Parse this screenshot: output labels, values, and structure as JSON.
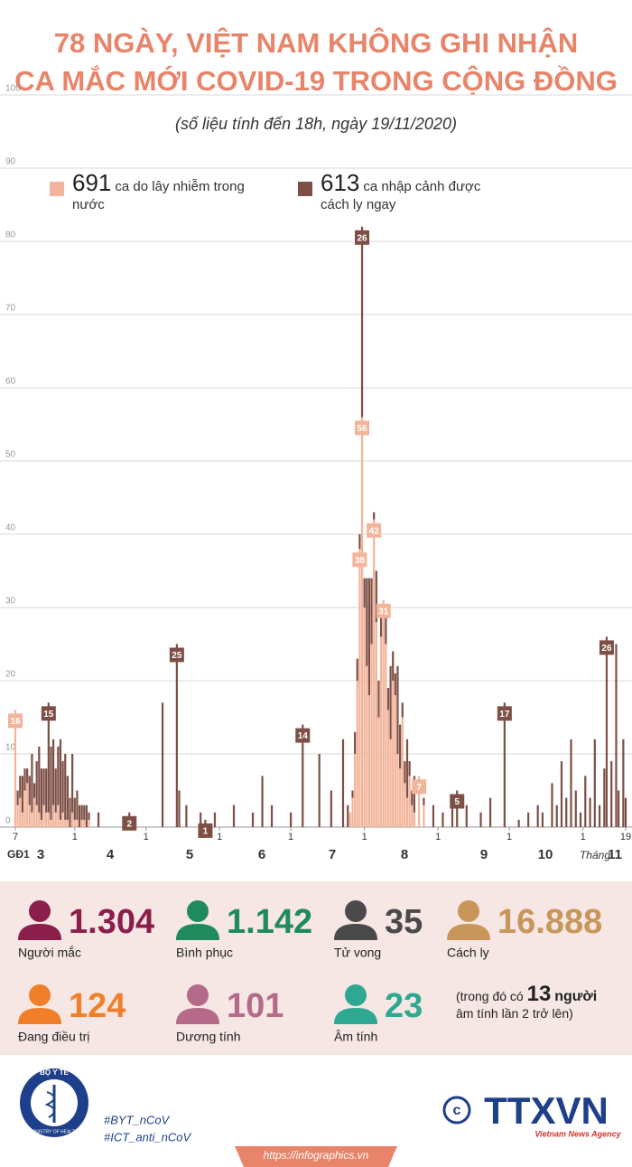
{
  "chart_data": {
    "type": "bar",
    "title_lines": [
      "78 NGÀY, VIỆT NAM KHÔNG GHI NHẬN",
      "CA MẮC MỚI COVID-19 TRONG CỘNG ĐỒNG"
    ],
    "subtitle": "(số liệu tính đến 18h, ngày 19/11/2020)",
    "stacked": true,
    "grid": true,
    "ylim": [
      0,
      100
    ],
    "yticks": [
      0,
      10,
      20,
      30,
      40,
      50,
      60,
      70,
      80,
      90,
      100
    ],
    "xlim": [
      -2,
      260
    ],
    "xticks": [
      {
        "value": 0,
        "label": "7"
      },
      {
        "value": 25,
        "label": "1"
      },
      {
        "value": 55,
        "label": "1"
      },
      {
        "value": 86,
        "label": "1"
      },
      {
        "value": 116,
        "label": "1"
      },
      {
        "value": 147,
        "label": "1"
      },
      {
        "value": 178,
        "label": "1"
      },
      {
        "value": 208,
        "label": "1"
      },
      {
        "value": 239,
        "label": "1"
      },
      {
        "value": 257,
        "label": "19"
      }
    ],
    "phase_label": "GĐ1",
    "months": [
      "3",
      "4",
      "5",
      "6",
      "7",
      "8",
      "9",
      "10",
      "11"
    ],
    "month_word": "Tháng",
    "x": [
      0,
      1,
      2,
      3,
      4,
      5,
      6,
      7,
      8,
      9,
      10,
      11,
      12,
      13,
      14,
      15,
      16,
      17,
      18,
      19,
      20,
      21,
      22,
      23,
      24,
      25,
      26,
      27,
      28,
      29,
      30,
      31,
      35,
      48,
      62,
      68,
      69,
      72,
      78,
      80,
      84,
      92,
      100,
      104,
      108,
      116,
      121,
      128,
      133,
      138,
      140,
      141,
      142,
      143,
      144,
      145,
      146,
      147,
      148,
      149,
      150,
      151,
      152,
      153,
      154,
      155,
      156,
      157,
      158,
      159,
      160,
      161,
      162,
      163,
      164,
      165,
      166,
      167,
      168,
      170,
      172,
      176,
      180,
      184,
      186,
      190,
      196,
      200,
      206,
      212,
      216,
      220,
      222,
      226,
      228,
      230,
      232,
      234,
      236,
      238,
      240,
      242,
      244,
      246,
      248,
      249,
      251,
      253,
      254,
      256,
      257
    ],
    "series": [
      {
        "name": "ca do lây nhiễm trong nước",
        "total": 691,
        "color": "#f2b49a",
        "values": [
          16,
          3,
          4,
          2,
          5,
          6,
          3,
          2,
          4,
          3,
          2,
          1,
          3,
          2,
          2,
          1,
          3,
          2,
          3,
          1,
          2,
          1,
          1,
          0,
          2,
          1,
          1,
          0,
          1,
          1,
          0,
          1,
          0,
          0,
          0,
          0,
          0,
          0,
          0,
          0,
          0,
          0,
          0,
          0,
          0,
          0,
          0,
          0,
          0,
          0,
          0,
          2,
          4,
          10,
          20,
          38,
          56,
          30,
          22,
          18,
          25,
          42,
          28,
          15,
          26,
          31,
          25,
          16,
          12,
          20,
          18,
          10,
          8,
          15,
          6,
          4,
          7,
          3,
          2,
          7,
          3,
          0,
          0,
          0,
          0,
          0,
          0,
          0,
          0,
          0,
          0,
          0,
          0,
          0,
          0,
          0,
          0,
          0,
          0,
          0,
          0,
          0,
          0,
          0,
          0,
          0,
          0,
          0,
          0,
          0,
          0
        ],
        "value_labels": [
          "16",
          null,
          null,
          null,
          null,
          null,
          null,
          null,
          null,
          null,
          null,
          null,
          null,
          null,
          null,
          null,
          null,
          null,
          null,
          null,
          null,
          null,
          null,
          null,
          null,
          null,
          null,
          null,
          null,
          null,
          null,
          null,
          null,
          null,
          null,
          null,
          null,
          null,
          null,
          null,
          null,
          null,
          null,
          null,
          null,
          null,
          null,
          null,
          null,
          null,
          null,
          null,
          null,
          null,
          null,
          "38",
          "56",
          null,
          null,
          null,
          null,
          "42",
          null,
          null,
          null,
          "31",
          null,
          null,
          null,
          null,
          null,
          null,
          null,
          null,
          null,
          null,
          null,
          null,
          null,
          "7",
          null,
          null,
          null,
          null,
          null,
          null,
          null,
          null,
          null,
          null,
          null,
          null,
          null,
          null,
          null,
          null,
          null,
          null,
          null,
          null,
          null,
          null,
          null,
          null,
          null,
          null,
          null,
          null,
          null,
          null,
          null
        ]
      },
      {
        "name": "ca nhập cảnh được cách ly ngay",
        "total": 613,
        "color": "#7d4f45",
        "values": [
          0,
          2,
          3,
          5,
          3,
          2,
          4,
          8,
          2,
          6,
          9,
          7,
          5,
          6,
          15,
          10,
          9,
          6,
          8,
          11,
          7,
          9,
          6,
          4,
          8,
          3,
          4,
          3,
          2,
          2,
          3,
          1,
          2,
          2,
          17,
          25,
          5,
          3,
          2,
          1,
          2,
          3,
          2,
          7,
          3,
          2,
          14,
          10,
          5,
          12,
          3,
          0,
          1,
          3,
          3,
          2,
          26,
          4,
          12,
          16,
          9,
          1,
          7,
          5,
          3,
          0,
          5,
          3,
          10,
          4,
          3,
          12,
          6,
          2,
          3,
          8,
          2,
          2,
          5,
          0,
          1,
          3,
          2,
          4,
          5,
          3,
          2,
          4,
          17,
          1,
          2,
          3,
          2,
          6,
          3,
          9,
          4,
          12,
          5,
          2,
          7,
          4,
          12,
          3,
          8,
          26,
          9,
          25,
          5,
          12,
          4
        ],
        "value_labels": [
          null,
          null,
          null,
          null,
          null,
          null,
          null,
          null,
          null,
          null,
          null,
          null,
          null,
          null,
          "15",
          null,
          null,
          null,
          null,
          null,
          null,
          null,
          null,
          null,
          null,
          null,
          null,
          null,
          null,
          null,
          null,
          null,
          null,
          "2",
          null,
          "25",
          null,
          null,
          null,
          "1",
          null,
          null,
          null,
          null,
          null,
          null,
          "14",
          null,
          null,
          null,
          null,
          null,
          null,
          null,
          null,
          null,
          "26",
          null,
          null,
          null,
          null,
          null,
          null,
          null,
          null,
          null,
          null,
          null,
          null,
          null,
          null,
          null,
          null,
          null,
          null,
          null,
          null,
          null,
          null,
          null,
          null,
          null,
          null,
          null,
          "5",
          null,
          null,
          null,
          "17",
          null,
          null,
          null,
          null,
          null,
          null,
          null,
          null,
          null,
          null,
          null,
          null,
          null,
          null,
          null,
          null,
          "26",
          null,
          null,
          null,
          null,
          null
        ]
      }
    ]
  },
  "stats": [
    {
      "value": "1.304",
      "label": "Người mắc",
      "color": "#8b1e4a"
    },
    {
      "value": "1.142",
      "label": "Bình phục",
      "color": "#1f8a5c"
    },
    {
      "value": "35",
      "label": "Tử vong",
      "color": "#4a4a4a"
    },
    {
      "value": "16.888",
      "label": "Cách ly",
      "color": "#c8965a"
    },
    {
      "value": "124",
      "label": "Đang điều trị",
      "color": "#f07f2a"
    },
    {
      "value": "101",
      "label": "Dương tính",
      "color": "#b56a8a"
    },
    {
      "value": "23",
      "label": "Âm tính",
      "color": "#2ea890"
    }
  ],
  "note": {
    "before": "(trong đó có",
    "count": "13",
    "unit": "người",
    "after": "âm tính lần 2 trở lên)"
  },
  "footer": {
    "ministry": "BỘ Y TẾ",
    "ministry_en": "MINISTRY OF HEALTH",
    "tags": [
      "#BYT_nCoV",
      "#ICT_anti_nCoV"
    ],
    "agency": "TTXVN",
    "agency_en": "Vietnam News Agency",
    "url": "https://infographics.vn"
  }
}
